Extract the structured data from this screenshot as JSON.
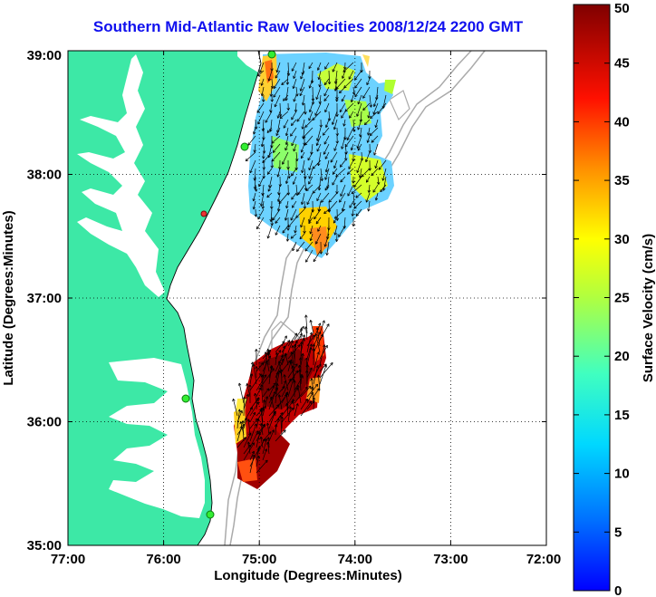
{
  "title": "Southern Mid-Atlantic Raw Velocities 2008/12/24 2200 GMT",
  "x_axis": {
    "label": "Longitude (Degrees:Minutes)",
    "ticks": [
      "77:00",
      "76:00",
      "75:00",
      "74:00",
      "73:00",
      "72:00"
    ]
  },
  "y_axis": {
    "label": "Latitude (Degrees:Minutes)",
    "ticks": [
      "39:00",
      "38:00",
      "37:00",
      "36:00",
      "35:00"
    ]
  },
  "colorbar": {
    "label": "Surface Velocity (cm/s)",
    "ticks": [
      "50",
      "45",
      "40",
      "35",
      "30",
      "25",
      "20",
      "15",
      "10",
      "5",
      "0"
    ],
    "range": [
      0,
      50
    ],
    "colormap": "jet"
  },
  "colors": {
    "land": "#3de8a6",
    "water": "#ffffff",
    "title": "#1010ee",
    "stations": "#33ee33",
    "station_alert": "#ee3333"
  },
  "extent": {
    "lon": [
      -77,
      -72
    ],
    "lat": [
      35,
      39
    ]
  },
  "grid": true
}
